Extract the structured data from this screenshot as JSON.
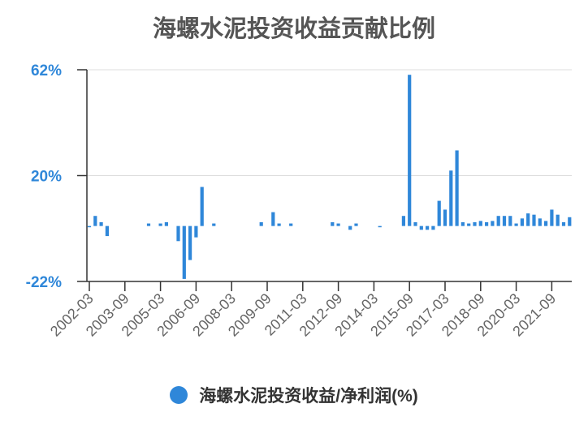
{
  "chart_data": {
    "type": "bar",
    "title": "海螺水泥投资收益贡献比例",
    "x_tick_labels": [
      "2002-03",
      "2003-09",
      "2005-03",
      "2006-09",
      "2008-03",
      "2009-09",
      "2011-03",
      "2012-09",
      "2014-03",
      "2015-09",
      "2017-03",
      "2018-09",
      "2020-03",
      "2021-09"
    ],
    "y_tick_labels": [
      "62%",
      "20%",
      "-22%"
    ],
    "ylim": [
      -22,
      62
    ],
    "unit": "%",
    "grid": true,
    "legend_position": "bottom",
    "series": [
      {
        "name": "海螺水泥投资收益/净利润(%)",
        "color": "#2f87d9",
        "data": [
          [
            "2002-03",
            -0.5
          ],
          [
            "2002-06",
            4
          ],
          [
            "2002-09",
            1.5
          ],
          [
            "2002-12",
            -4
          ],
          [
            "2004-09",
            1
          ],
          [
            "2005-03",
            1
          ],
          [
            "2005-06",
            1.5
          ],
          [
            "2005-12",
            -6
          ],
          [
            "2006-03",
            -21
          ],
          [
            "2006-06",
            -13.5
          ],
          [
            "2006-09",
            -4.5
          ],
          [
            "2006-12",
            15.5
          ],
          [
            "2007-06",
            1
          ],
          [
            "2009-06",
            1.5
          ],
          [
            "2009-12",
            5.5
          ],
          [
            "2010-03",
            1
          ],
          [
            "2010-09",
            1
          ],
          [
            "2012-06",
            1.5
          ],
          [
            "2012-09",
            1
          ],
          [
            "2013-03",
            -1.5
          ],
          [
            "2013-06",
            1
          ],
          [
            "2014-06",
            -0.5
          ],
          [
            "2015-06",
            4
          ],
          [
            "2015-09",
            60
          ],
          [
            "2015-12",
            1.5
          ],
          [
            "2016-03",
            -1.5
          ],
          [
            "2016-06",
            -1.5
          ],
          [
            "2016-09",
            -1.5
          ],
          [
            "2016-12",
            10
          ],
          [
            "2017-03",
            6.5
          ],
          [
            "2017-06",
            22
          ],
          [
            "2017-09",
            30
          ],
          [
            "2017-12",
            1.5
          ],
          [
            "2018-03",
            1
          ],
          [
            "2018-06",
            1.5
          ],
          [
            "2018-09",
            2
          ],
          [
            "2018-12",
            1.5
          ],
          [
            "2019-03",
            2
          ],
          [
            "2019-06",
            4
          ],
          [
            "2019-09",
            4
          ],
          [
            "2019-12",
            4
          ],
          [
            "2020-03",
            1
          ],
          [
            "2020-06",
            3
          ],
          [
            "2020-09",
            5
          ],
          [
            "2020-12",
            4.5
          ],
          [
            "2021-03",
            3
          ],
          [
            "2021-06",
            2
          ],
          [
            "2021-09",
            6.5
          ],
          [
            "2021-12",
            4.5
          ],
          [
            "2022-03",
            1.5
          ],
          [
            "2022-06",
            3.5
          ]
        ]
      }
    ]
  }
}
